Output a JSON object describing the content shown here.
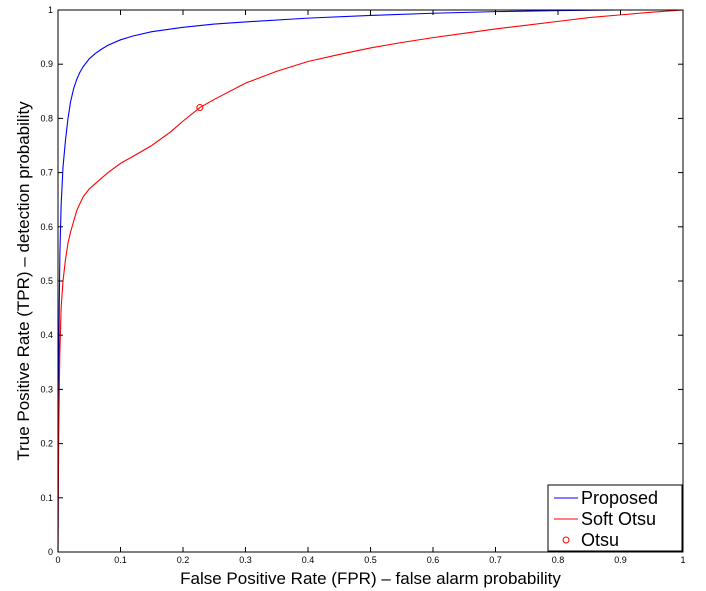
{
  "chart_data": {
    "type": "line",
    "title": "",
    "xlabel": "False Positive Rate (FPR) – false alarm probability",
    "ylabel": "True Positive Rate (TPR) – detection probability",
    "xlim": [
      0,
      1
    ],
    "ylim": [
      0,
      1
    ],
    "xticks": [
      0,
      0.1,
      0.2,
      0.3,
      0.4,
      0.5,
      0.6,
      0.7,
      0.8,
      0.9,
      1
    ],
    "yticks": [
      0,
      0.1,
      0.2,
      0.3,
      0.4,
      0.5,
      0.6,
      0.7,
      0.8,
      0.9,
      1
    ],
    "xtick_labels": [
      "0",
      "0.1",
      "0.2",
      "0.3",
      "0.4",
      "0.5",
      "0.6",
      "0.7",
      "0.8",
      "0.9",
      "1"
    ],
    "ytick_labels": [
      "0",
      "0.1",
      "0.2",
      "0.3",
      "0.4",
      "0.5",
      "0.6",
      "0.7",
      "0.8",
      "0.9",
      "1"
    ],
    "grid": false,
    "legend": "bottom-right",
    "series": [
      {
        "name": "Proposed",
        "color": "#0000ff",
        "style": "line",
        "x": [
          0,
          0.001,
          0.002,
          0.003,
          0.005,
          0.008,
          0.012,
          0.016,
          0.02,
          0.025,
          0.03,
          0.035,
          0.04,
          0.05,
          0.06,
          0.07,
          0.08,
          0.1,
          0.12,
          0.15,
          0.2,
          0.25,
          0.3,
          0.4,
          0.5,
          0.6,
          0.7,
          0.8,
          0.9,
          1.0
        ],
        "y": [
          0,
          0.3,
          0.45,
          0.55,
          0.64,
          0.71,
          0.76,
          0.8,
          0.83,
          0.855,
          0.872,
          0.885,
          0.895,
          0.91,
          0.92,
          0.928,
          0.935,
          0.945,
          0.952,
          0.96,
          0.968,
          0.974,
          0.978,
          0.985,
          0.99,
          0.994,
          0.997,
          0.999,
          1.0,
          1.0
        ]
      },
      {
        "name": "Soft Otsu",
        "color": "#ff0000",
        "style": "line",
        "x": [
          0,
          0.0005,
          0.001,
          0.002,
          0.003,
          0.005,
          0.008,
          0.012,
          0.016,
          0.02,
          0.025,
          0.03,
          0.04,
          0.05,
          0.06,
          0.08,
          0.1,
          0.12,
          0.15,
          0.18,
          0.2,
          0.227,
          0.25,
          0.3,
          0.35,
          0.4,
          0.45,
          0.5,
          0.55,
          0.6,
          0.65,
          0.7,
          0.75,
          0.8,
          0.85,
          0.9,
          0.95,
          1.0
        ],
        "y": [
          0,
          0.1,
          0.2,
          0.3,
          0.37,
          0.45,
          0.5,
          0.54,
          0.57,
          0.59,
          0.61,
          0.63,
          0.655,
          0.67,
          0.68,
          0.7,
          0.717,
          0.73,
          0.75,
          0.775,
          0.795,
          0.82,
          0.835,
          0.865,
          0.887,
          0.905,
          0.918,
          0.93,
          0.94,
          0.949,
          0.957,
          0.965,
          0.972,
          0.979,
          0.986,
          0.991,
          0.996,
          1.0
        ]
      },
      {
        "name": "Otsu",
        "color": "#ff0000",
        "style": "marker",
        "x": [
          0.227
        ],
        "y": [
          0.82
        ]
      }
    ]
  }
}
